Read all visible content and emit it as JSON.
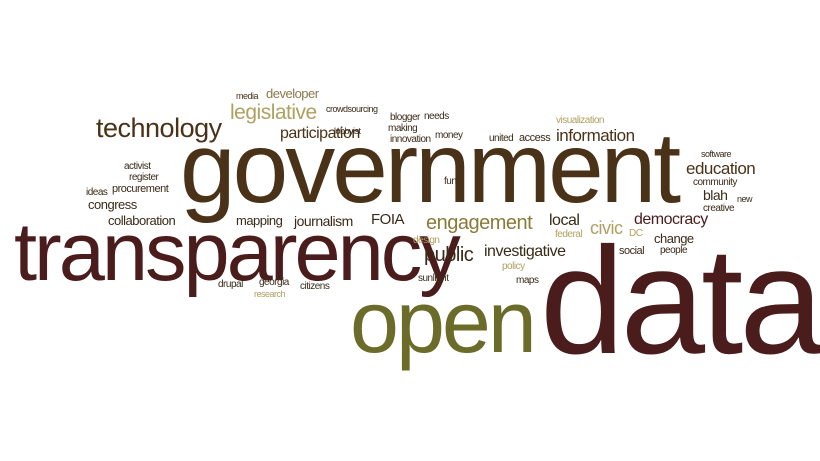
{
  "colors": {
    "maroon": "#4a1c1c",
    "brown": "#4a3218",
    "olive": "#6b6b2a",
    "khaki": "#b0a062",
    "dark": "#3a2a18"
  },
  "words": {
    "government": "government",
    "transparency": "transparency",
    "open": "open",
    "data": "data",
    "technology": "technology",
    "legislative": "legislative",
    "developer": "developer",
    "media": "media",
    "participation": "participation",
    "information": "information",
    "education": "education",
    "engagement": "engagement",
    "journalism": "journalism",
    "civic": "civic",
    "democracy": "democracy",
    "public": "public",
    "investigative": "investigative",
    "local": "local",
    "foia": "FOIA",
    "mapping": "mapping",
    "collaboration": "collaboration",
    "congress": "congress",
    "procurement": "procurement",
    "register": "register",
    "activist": "activist",
    "ideas": "ideas",
    "lobbyist": "lobbyist",
    "blogger": "blogger",
    "making": "making",
    "innovation": "innovation",
    "money": "money",
    "needs": "needs",
    "crowdsourcing": "crowdsourcing",
    "united": "united",
    "access": "access",
    "visualization": "visualization",
    "software": "software",
    "community": "community",
    "blah": "blah",
    "creative": "creative",
    "new": "new",
    "dc": "DC",
    "change": "change",
    "social": "social",
    "people": "people",
    "federal": "federal",
    "design": "design",
    "maps": "maps",
    "sunlight": "sunlight",
    "policy": "policy",
    "citizens": "citizens",
    "research": "research",
    "drupal": "drupal",
    "georgia": "georgia",
    "fun": "fun"
  }
}
